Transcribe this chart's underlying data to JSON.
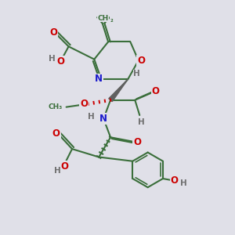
{
  "bg_color": "#e0e0e8",
  "bond_color": "#3a6e3a",
  "bond_width": 1.5,
  "atom_colors": {
    "O": "#cc0000",
    "N": "#1a1acc",
    "C": "#3a6e3a",
    "H": "#707070"
  },
  "font_size": 8.5,
  "font_size_h": 7.5
}
